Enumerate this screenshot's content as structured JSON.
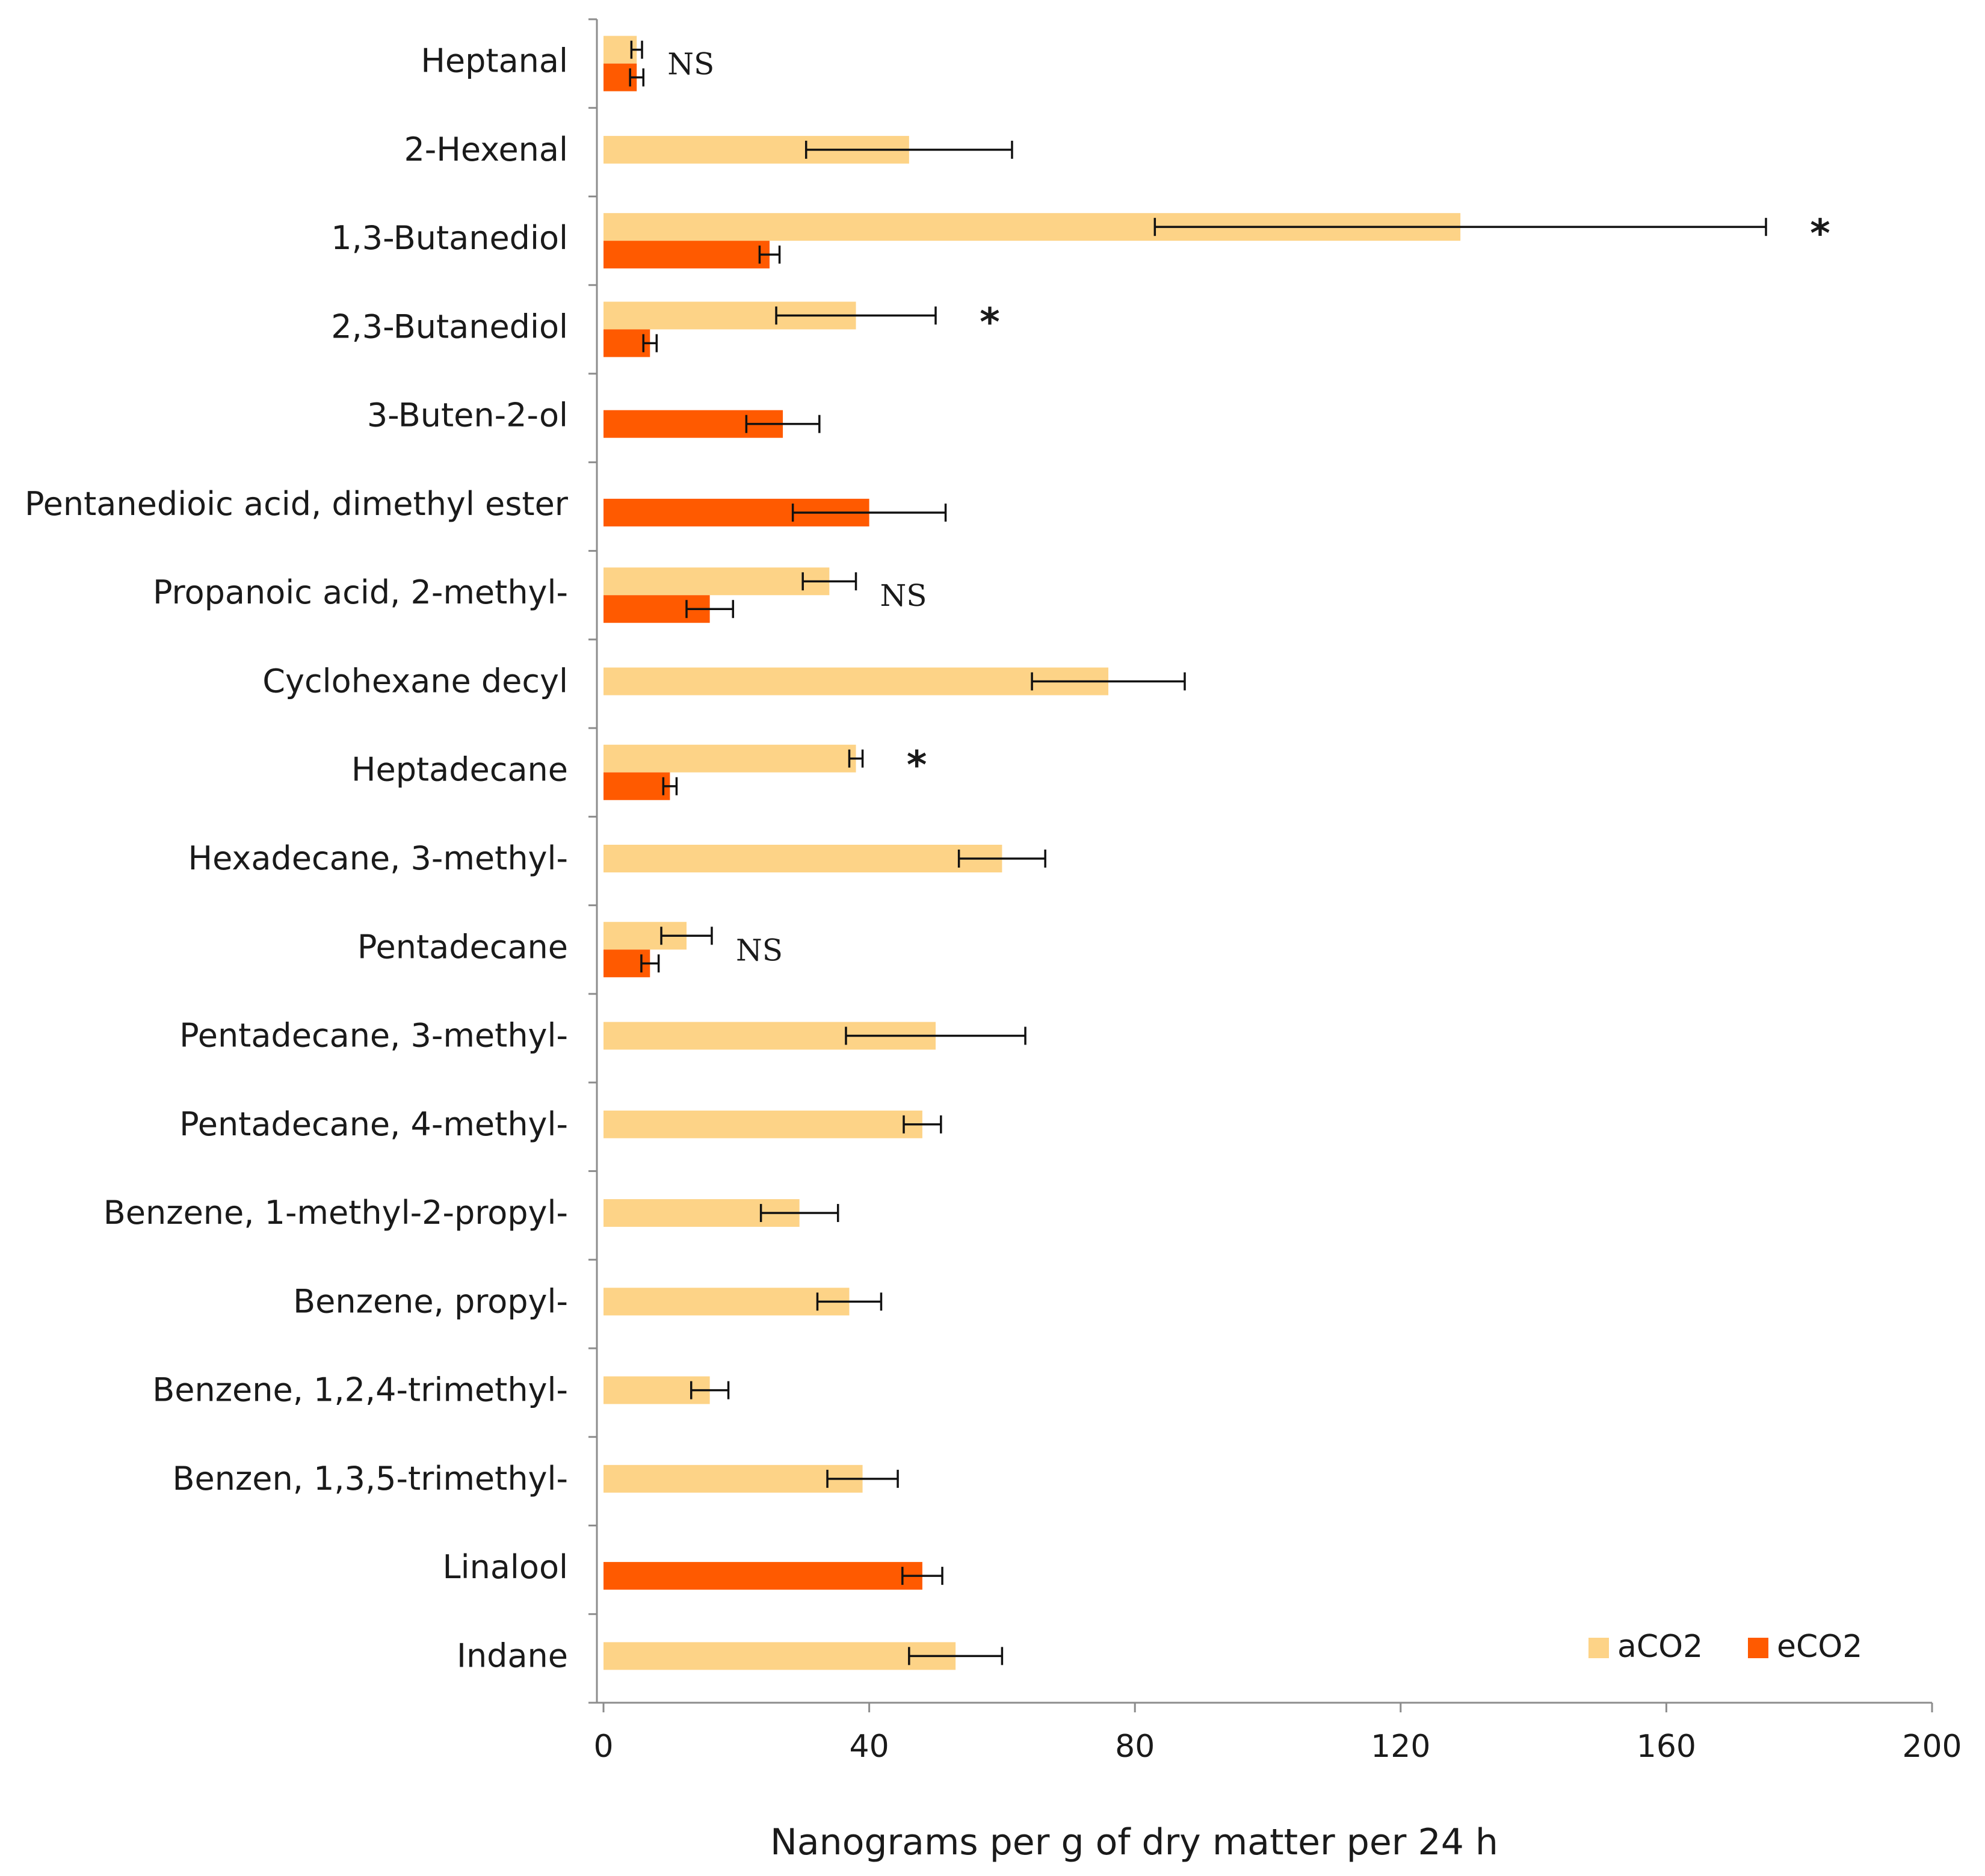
{
  "chart_data": {
    "type": "bar",
    "orientation": "horizontal",
    "xlabel": "Nanograms per g of dry matter per 24  h",
    "ylabel": "",
    "xlim": [
      0,
      200
    ],
    "xticks": [
      0,
      40,
      80,
      120,
      160,
      200
    ],
    "categories": [
      "Heptanal",
      "2-Hexenal",
      "1,3-Butanediol",
      "2,3-Butanediol",
      "3-Buten-2-ol",
      "Pentanedioic acid, dimethyl ester",
      "Propanoic acid, 2-methyl-",
      "Cyclohexane decyl",
      "Heptadecane",
      "Hexadecane, 3-methyl-",
      "Pentadecane",
      "Pentadecane, 3-methyl-",
      "Pentadecane, 4-methyl-",
      "Benzene, 1-methyl-2-propyl-",
      "Benzene, propyl-",
      "Benzene, 1,2,4-trimethyl-",
      "Benzen, 1,3,5-trimethyl-",
      "Linalool",
      "Indane"
    ],
    "series": [
      {
        "name": "aCO2",
        "color": "#FDD387",
        "values": [
          5,
          46,
          129,
          38,
          null,
          null,
          34,
          76,
          38,
          60,
          12.5,
          50,
          48,
          29.5,
          37,
          16,
          39,
          null,
          53
        ],
        "errors": [
          0.8,
          15.5,
          46,
          12,
          null,
          null,
          4,
          11.5,
          1,
          6.5,
          3.8,
          13.5,
          2.8,
          5.8,
          4.8,
          2.8,
          5.3,
          null,
          7
        ]
      },
      {
        "name": "eCO2",
        "color": "#FF5A00",
        "values": [
          5,
          null,
          25,
          7,
          27,
          40,
          16,
          null,
          10,
          null,
          7,
          null,
          null,
          null,
          null,
          null,
          null,
          48,
          null
        ],
        "errors": [
          1,
          null,
          1.5,
          1,
          5.5,
          11.5,
          3.5,
          null,
          1,
          null,
          1.3,
          null,
          null,
          null,
          null,
          null,
          null,
          3,
          null
        ]
      }
    ],
    "significance": [
      "NS",
      "",
      "*",
      "*",
      "",
      "",
      "NS",
      "",
      "*",
      "",
      "NS",
      "",
      "",
      "",
      "",
      "",
      "",
      "",
      ""
    ],
    "legend": {
      "position": "bottom-right",
      "entries": [
        "aCO2",
        "eCO2"
      ]
    }
  }
}
